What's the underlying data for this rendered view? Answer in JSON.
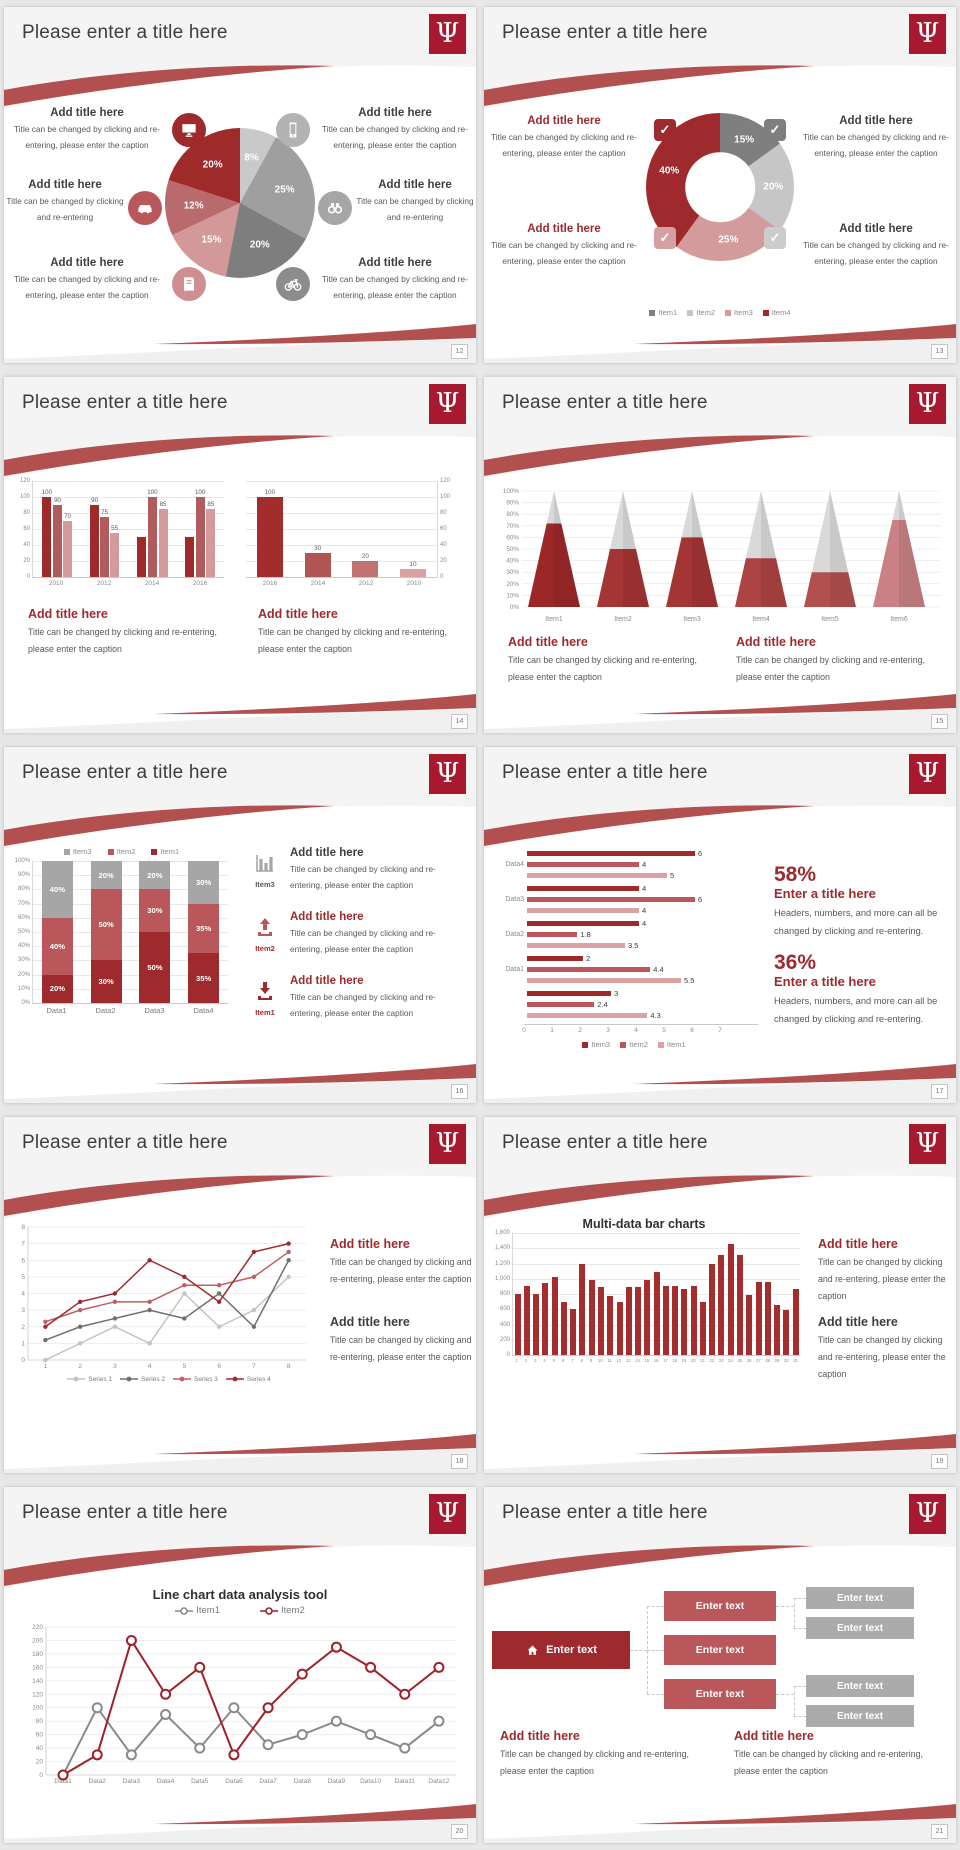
{
  "strings": {
    "slide_title": "Please enter a title here",
    "add_title": "Add title here",
    "cap_long": "Title can be changed by clicking and re-entering, please enter the caption",
    "cap_short": "Title can be changed by clicking and re-entering",
    "stat_cap": "Headers, numbers, and more can all be changed by clicking and re-entering.",
    "enter_title": "Enter a title here",
    "enter_text": "Enter text"
  },
  "palette": {
    "crimson": "#9e2a2e",
    "red_mid": "#b9575a",
    "red_light": "#d6a0a2",
    "swoosh": "#b25050",
    "logo_bg": "#a6192e",
    "gray_dark": "#7f7f7f",
    "gray_mid": "#a6a6a6",
    "gray_light": "#c9c9c9",
    "title_color": "#3d3d3d",
    "caption_color": "#595959"
  },
  "slides": [
    {
      "page": "12",
      "callouts": [
        {
          "title": "Add title here",
          "caption": "Title can be changed by clicking and re-entering, please enter the caption",
          "icon": "monitor-icon",
          "icon_bg": "#9e2a2e",
          "title_color": "dark"
        },
        {
          "title": "Add title here",
          "caption": "Title can be changed by clicking and re-entering",
          "icon": "car-icon",
          "icon_bg": "#b9575a",
          "title_color": "dark"
        },
        {
          "title": "Add title here",
          "caption": "Title can be changed by clicking and re-entering, please enter the caption",
          "icon": "book-icon",
          "icon_bg": "#cf8f92",
          "title_color": "dark"
        },
        {
          "title": "Add title here",
          "caption": "Title can be changed by clicking and re-entering, please enter the caption",
          "icon": "smartphone-icon",
          "icon_bg": "#b3b3b3",
          "title_color": "dark"
        },
        {
          "title": "Add title here",
          "caption": "Title can be changed by clicking and re-entering",
          "icon": "binoculars-icon",
          "icon_bg": "#a6a6a6",
          "title_color": "dark"
        },
        {
          "title": "Add title here",
          "caption": "Title can be changed by clicking and re-entering, please enter the caption",
          "icon": "bicycle-icon",
          "icon_bg": "#8c8c8c",
          "title_color": "dark"
        }
      ]
    },
    {
      "page": "13",
      "callouts": [
        {
          "title": "Add title here",
          "caption": "Title can be changed by clicking and re-entering, please enter the caption",
          "check_color": "#9e2a2e",
          "title_color": "red"
        },
        {
          "title": "Add title here",
          "caption": "Title can be changed by clicking and re-entering, please enter the caption",
          "check_color": "#d6a0a2",
          "title_color": "red"
        },
        {
          "title": "Add title here",
          "caption": "Title can be changed by clicking and re-entering, please enter the caption",
          "check_color": "#7f7f7f",
          "title_color": "dark"
        },
        {
          "title": "Add title here",
          "caption": "Title can be changed by clicking and re-entering, please enter the caption",
          "check_color": "#cccccc",
          "title_color": "dark"
        }
      ]
    },
    {
      "page": "14",
      "sections": [
        {
          "title": "Add title here",
          "caption": "Title can be changed by clicking and re-entering, please enter the caption",
          "color": "red"
        },
        {
          "title": "Add title here",
          "caption": "Title can be changed by clicking and re-entering, please enter the caption",
          "color": "red"
        }
      ]
    },
    {
      "page": "15",
      "sections": [
        {
          "title": "Add title here",
          "caption": "Title can be changed by clicking and re-entering, please enter the caption",
          "color": "red"
        },
        {
          "title": "Add title here",
          "caption": "Title can be changed by clicking and re-entering, please enter the caption",
          "color": "red"
        }
      ]
    },
    {
      "page": "16",
      "callouts": [
        {
          "label": "Item3",
          "icon": "bar-chart-icon",
          "title": "Add title here",
          "caption": "Title can be changed by clicking and re-entering, please enter the caption",
          "title_color": "dark",
          "label_color": "#595959"
        },
        {
          "label": "Item2",
          "icon": "upload-arrow-icon",
          "title": "Add title here",
          "caption": "Title can be changed by clicking and re-entering, please enter the caption",
          "title_color": "red",
          "label_color": "#9e2a2e"
        },
        {
          "label": "Item1",
          "icon": "download-arrow-icon",
          "title": "Add title here",
          "caption": "Title can be changed by clicking and re-entering, please enter the caption",
          "title_color": "red",
          "label_color": "#9e2a2e"
        }
      ]
    },
    {
      "page": "17",
      "stats": [
        {
          "value": "58%",
          "title": "Enter a title here",
          "caption": "Headers, numbers, and more can all be changed by clicking and re-entering."
        },
        {
          "value": "36%",
          "title": "Enter a title here",
          "caption": "Headers, numbers, and more can all be changed by clicking and re-entering."
        }
      ]
    },
    {
      "page": "18",
      "sections": [
        {
          "title": "Add title here",
          "caption": "Title can be changed by clicking and re-entering, please enter the caption",
          "color": "red"
        },
        {
          "title": "Add title here",
          "caption": "Title can be changed by clicking and re-entering, please enter the caption",
          "color": "dark"
        }
      ]
    },
    {
      "page": "19",
      "sections": [
        {
          "title": "Add title here",
          "caption": "Title can be changed by clicking and re-entering, please enter the caption",
          "color": "red"
        },
        {
          "title": "Add title here",
          "caption": "Title can be changed by clicking and re-entering, please enter the caption",
          "color": "dark"
        }
      ]
    },
    {
      "page": "20"
    },
    {
      "page": "21",
      "org": {
        "root": "Enter text",
        "mids": [
          "Enter text",
          "Enter text",
          "Enter text"
        ],
        "leaves": [
          "Enter text",
          "Enter text",
          "Enter text",
          "Enter text"
        ]
      },
      "sections": [
        {
          "title": "Add title here",
          "caption": "Title can be changed by clicking and re-entering, please enter the caption",
          "color": "red"
        },
        {
          "title": "Add title here",
          "caption": "Title can be changed by clicking and re-entering, please enter the caption",
          "color": "red"
        }
      ]
    }
  ],
  "chart_data": [
    {
      "type": "pie",
      "slide_page": "12",
      "start": "top",
      "direction": "clockwise",
      "slices": [
        {
          "label": "8%",
          "value": 8,
          "color": "#c9c9c9"
        },
        {
          "label": "25%",
          "value": 25,
          "color": "#9f9f9f"
        },
        {
          "label": "20%",
          "value": 20,
          "color": "#7e7e7e"
        },
        {
          "label": "15%",
          "value": 15,
          "color": "#d2989a"
        },
        {
          "label": "12%",
          "value": 12,
          "color": "#b96a6c"
        },
        {
          "label": "20%",
          "value": 20,
          "color": "#9e2a2a"
        }
      ]
    },
    {
      "type": "pie",
      "subtype": "donut",
      "slide_page": "13",
      "slices": [
        {
          "label": "15%",
          "value": 15,
          "color": "#7f7f7f"
        },
        {
          "label": "20%",
          "value": 20,
          "color": "#c6c6c6"
        },
        {
          "label": "25%",
          "value": 25,
          "color": "#d49b9d"
        },
        {
          "label": "40%",
          "value": 40,
          "color": "#9e2a2e"
        }
      ],
      "legend": [
        {
          "label": "Item1",
          "color": "#7f7f7f"
        },
        {
          "label": "Item2",
          "color": "#c6c6c6"
        },
        {
          "label": "Item3",
          "color": "#d49b9d"
        },
        {
          "label": "Item4",
          "color": "#9e2a2e"
        }
      ]
    },
    {
      "type": "bar",
      "slide_page": "14",
      "axis": "left",
      "categories": [
        "2010",
        "2012",
        "2014",
        "2016"
      ],
      "series": [
        {
          "name": "series1",
          "color": "#9e2a2a",
          "values": [
            100,
            90,
            50,
            50
          ],
          "labels": [
            "100",
            "90",
            "",
            ""
          ]
        },
        {
          "name": "series2",
          "color": "#b05c5e",
          "values": [
            90,
            75,
            100,
            100
          ],
          "labels": [
            "90",
            "75",
            "100",
            "100"
          ]
        },
        {
          "name": "series3",
          "color": "#d49b9d",
          "values": [
            70,
            55,
            85,
            85
          ],
          "labels": [
            "70",
            "55",
            "85",
            "85"
          ]
        }
      ],
      "ylim": [
        0,
        120
      ],
      "yticks": [
        "0",
        "20",
        "40",
        "60",
        "80",
        "100",
        "120"
      ]
    },
    {
      "type": "bar",
      "slide_page": "14",
      "axis": "right",
      "categories": [
        "2016",
        "2014",
        "2012",
        "2010"
      ],
      "values": [
        100,
        30,
        20,
        10
      ],
      "labels": [
        "100",
        "30",
        "20",
        "10"
      ],
      "colors": [
        "#a32c2c",
        "#b05454",
        "#c07272",
        "#daa3a3"
      ],
      "ylim": [
        0,
        120
      ],
      "yticks": [
        "0",
        "20",
        "40",
        "60",
        "80",
        "100",
        "120"
      ]
    },
    {
      "type": "cone",
      "slide_page": "15",
      "categories": [
        "Item1",
        "Item2",
        "Item3",
        "Item4",
        "Item5",
        "Item6"
      ],
      "values": [
        72,
        50,
        60,
        42,
        30,
        75
      ],
      "colors": [
        "#9c2727",
        "#a53434",
        "#a53434",
        "#ad4343",
        "#b25050",
        "#c98184"
      ],
      "cone_top_color": "#d9d9d9",
      "ylim": [
        0,
        100
      ],
      "yticks": [
        "0%",
        "10%",
        "20%",
        "30%",
        "40%",
        "50%",
        "60%",
        "70%",
        "80%",
        "90%",
        "100%"
      ]
    },
    {
      "type": "bar",
      "subtype": "stacked",
      "slide_page": "16",
      "categories": [
        "Data1",
        "Data2",
        "Data3",
        "Data4"
      ],
      "series": [
        {
          "name": "Item1",
          "color": "#9e2a2e",
          "values": [
            20,
            30,
            50,
            35
          ],
          "labels": [
            "20%",
            "30%",
            "50%",
            "35%"
          ]
        },
        {
          "name": "Item2",
          "color": "#b9575a",
          "values": [
            40,
            50,
            30,
            35
          ],
          "labels": [
            "40%",
            "50%",
            "30%",
            "35%"
          ]
        },
        {
          "name": "Item3",
          "color": "#a6a6a6",
          "values": [
            40,
            20,
            20,
            30
          ],
          "labels": [
            "40%",
            "20%",
            "20%",
            "30%"
          ]
        }
      ],
      "legend_order": [
        "Item3",
        "Item2",
        "Item1"
      ],
      "ylim": [
        0,
        100
      ],
      "yticks": [
        "0%",
        "10%",
        "20%",
        "30%",
        "40%",
        "50%",
        "60%",
        "70%",
        "80%",
        "90%",
        "100%"
      ]
    },
    {
      "type": "bar",
      "subtype": "horizontal",
      "slide_page": "17",
      "groups": [
        "Data4",
        "Data3",
        "Data2",
        "Data1",
        ""
      ],
      "series": [
        {
          "name": "Item3",
          "color": "#9e2a2e",
          "values": [
            6,
            4,
            4,
            2,
            3
          ]
        },
        {
          "name": "Item2",
          "color": "#b9575a",
          "values": [
            4,
            6,
            1.8,
            4.4,
            2.4
          ]
        },
        {
          "name": "Item1",
          "color": "#d9a3a5",
          "values": [
            5,
            4,
            3.5,
            5.5,
            4.3
          ]
        }
      ],
      "xlim": [
        0,
        7
      ],
      "xticks": [
        "0",
        "1",
        "2",
        "3",
        "4",
        "5",
        "6",
        "7"
      ],
      "legend": [
        "Item3",
        "Item2",
        "Item1"
      ]
    },
    {
      "type": "line",
      "slide_page": "18",
      "x": [
        "1",
        "2",
        "3",
        "4",
        "5",
        "6",
        "7",
        "8"
      ],
      "ylim": [
        0,
        8
      ],
      "yticks": [
        "0",
        "1",
        "2",
        "3",
        "4",
        "5",
        "6",
        "7",
        "8"
      ],
      "series": [
        {
          "name": "Series 1",
          "color": "#c3c3c3",
          "values": [
            0,
            1,
            2,
            1,
            4,
            2,
            3,
            5
          ]
        },
        {
          "name": "Series 2",
          "color": "#6f6f6f",
          "values": [
            1.2,
            2,
            2.5,
            3,
            2.5,
            4,
            2,
            6
          ]
        },
        {
          "name": "Series 3",
          "color": "#bf6064",
          "values": [
            2.3,
            3,
            3.5,
            3.5,
            4.5,
            4.5,
            5,
            6.5
          ]
        },
        {
          "name": "Series 4",
          "color": "#9e2a2e",
          "values": [
            2,
            3.5,
            4,
            6,
            5,
            3.5,
            6.5,
            7
          ]
        }
      ]
    },
    {
      "type": "bar",
      "slide_page": "19",
      "title": "Multi-data bar charts",
      "x": [
        "1",
        "2",
        "3",
        "4",
        "5",
        "6",
        "7",
        "8",
        "9",
        "10",
        "11",
        "12",
        "13",
        "14",
        "15",
        "16",
        "17",
        "18",
        "19",
        "20",
        "21",
        "22",
        "23",
        "24",
        "25",
        "26",
        "27",
        "28",
        "29",
        "30",
        "31"
      ],
      "values": [
        800,
        900,
        800,
        950,
        1020,
        700,
        610,
        1200,
        980,
        890,
        770,
        700,
        890,
        890,
        990,
        1090,
        900,
        900,
        870,
        900,
        700,
        1200,
        1310,
        1450,
        1310,
        790,
        960,
        960,
        660,
        590,
        870
      ],
      "color": "#a42d2d",
      "ylim": [
        0,
        1600
      ],
      "yticks": [
        "0",
        "200",
        "400",
        "600",
        "800",
        "1,000",
        "1,200",
        "1,400",
        "1,600"
      ]
    },
    {
      "type": "line",
      "slide_page": "20",
      "title": "Line chart data analysis tool",
      "categories": [
        "Data1",
        "Data2",
        "Data3",
        "Data4",
        "Data5",
        "Data6",
        "Data7",
        "Data8",
        "Data9",
        "Data10",
        "Data11",
        "Data12"
      ],
      "ylim": [
        0,
        220
      ],
      "yticks": [
        "0",
        "20",
        "40",
        "60",
        "80",
        "100",
        "120",
        "140",
        "160",
        "180",
        "200",
        "220"
      ],
      "series": [
        {
          "name": "Item1",
          "color": "#8a8a8a",
          "values": [
            0,
            100,
            30,
            90,
            40,
            100,
            45,
            60,
            80,
            60,
            40,
            80
          ]
        },
        {
          "name": "Item2",
          "color": "#9e2028",
          "values": [
            0,
            30,
            200,
            120,
            160,
            30,
            100,
            150,
            190,
            160,
            120,
            160
          ]
        }
      ]
    }
  ]
}
